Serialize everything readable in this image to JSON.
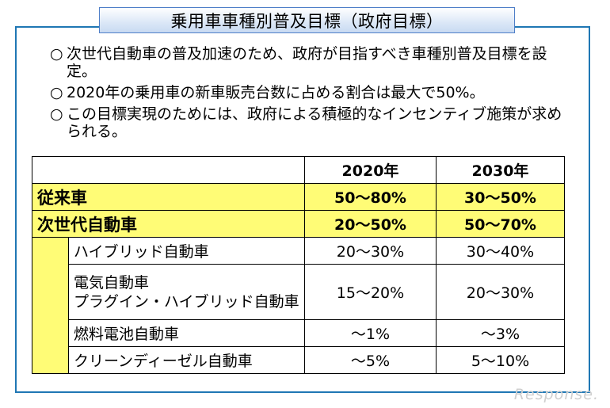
{
  "title": "乗用車車種別普及目標（政府目標）",
  "bullets": [
    {
      "mark": "○",
      "text": "次世代自動車の普及加速のため、政府が目指すべき車種別普及目標を設定。"
    },
    {
      "mark": "○",
      "text": "2020年の乗用車の新車販売台数に占める割合は最大で50%。"
    },
    {
      "mark": "○",
      "text": "この目標実現のためには、政府による積極的なインセンティブ施策が求められる。"
    }
  ],
  "table": {
    "headers": [
      "",
      "2020年",
      "2030年"
    ],
    "rows": [
      {
        "label": "従来車",
        "v2020": "50〜80%",
        "v2030": "30〜50%"
      },
      {
        "label": "次世代自動車",
        "v2020": "20〜50%",
        "v2030": "50〜70%"
      }
    ],
    "subrows": [
      {
        "label": "ハイブリッド自動車",
        "v2020": "20〜30%",
        "v2030": "30〜40%"
      },
      {
        "label_line1": "電気自動車",
        "label_line2": "プラグイン・ハイブリッド自動車",
        "v2020": "15〜20%",
        "v2030": "20〜30%"
      },
      {
        "label": "燃料電池自動車",
        "v2020": "〜1%",
        "v2030": "〜3%"
      },
      {
        "label": "クリーンディーゼル自動車",
        "v2020": "〜5%",
        "v2030": "5〜10%"
      }
    ]
  },
  "colors": {
    "highlight": "#fffc76",
    "frame": "#1f77b4"
  },
  "watermark": "Response."
}
